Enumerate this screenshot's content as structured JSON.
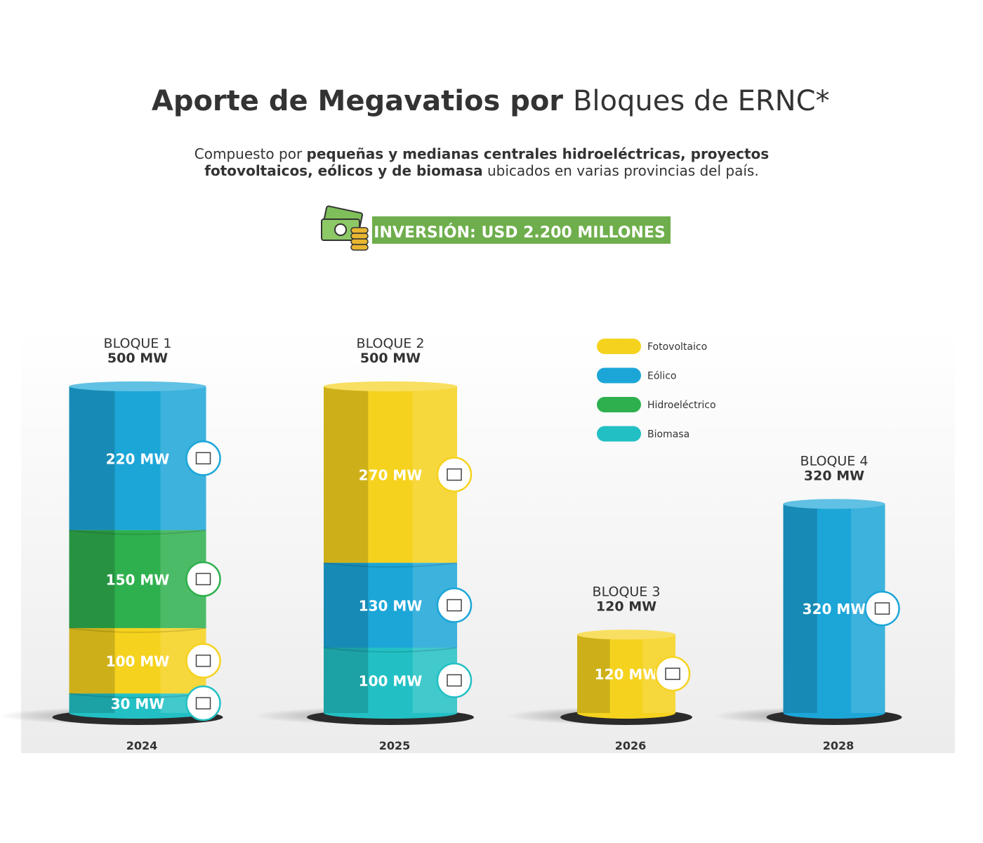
{
  "header": {
    "title_bold": "Aporte de Megavatios por ",
    "title_regular": "Bloques de ERNC*",
    "subtitle_lines": [
      [
        {
          "text": "Compuesto por ",
          "bold": false
        },
        {
          "text": "pequeñas y medianas centrales hidroeléctricas, proyectos",
          "bold": true
        }
      ],
      [
        {
          "text": "fotovoltaicos, eólicos y de biomasa",
          "bold": true
        },
        {
          "text": " ubicados en varias provincias del país.",
          "bold": false
        }
      ]
    ],
    "banner": "INVERSIÓN: USD 2.200 MILLONES"
  },
  "chart_data": {
    "type": "stacked-cylinder",
    "unit_scale": 0.93,
    "legend": [
      {
        "name": "Fotovoltaico",
        "color": "#f5d21e"
      },
      {
        "name": "Eólico",
        "color": "#1ca6d8"
      },
      {
        "name": "Hidroeléctrico",
        "color": "#2fb04e"
      },
      {
        "name": "Biomasa",
        "color": "#22c0c4"
      }
    ],
    "blocks": [
      {
        "name": "BLOQUE 1",
        "total": 500,
        "total_label": "500 MW",
        "year": "2024",
        "segments": [
          {
            "source": "Biomasa",
            "value": 30,
            "label": "30 MW"
          },
          {
            "source": "Fotovoltaico",
            "value": 100,
            "label": "100 MW"
          },
          {
            "source": "Hidroeléctrico",
            "value": 150,
            "label": "150 MW"
          },
          {
            "source": "Eólico",
            "value": 220,
            "label": "220 MW"
          }
        ]
      },
      {
        "name": "BLOQUE 2",
        "total": 500,
        "total_label": "500 MW",
        "year": "2025",
        "segments": [
          {
            "source": "Biomasa",
            "value": 100,
            "label": "100 MW"
          },
          {
            "source": "Eólico",
            "value": 130,
            "label": "130 MW"
          },
          {
            "source": "Fotovoltaico",
            "value": 270,
            "label": "270 MW"
          }
        ]
      },
      {
        "name": "BLOQUE 3",
        "total": 120,
        "total_label": "120 MW",
        "year": "2026",
        "segments": [
          {
            "source": "Fotovoltaico",
            "value": 120,
            "label": "120 MW"
          }
        ]
      },
      {
        "name": "BLOQUE 4",
        "total": 320,
        "total_label": "320 MW",
        "year": "2028",
        "segments": [
          {
            "source": "Eólico",
            "value": 320,
            "label": "320 MW"
          }
        ]
      }
    ]
  }
}
